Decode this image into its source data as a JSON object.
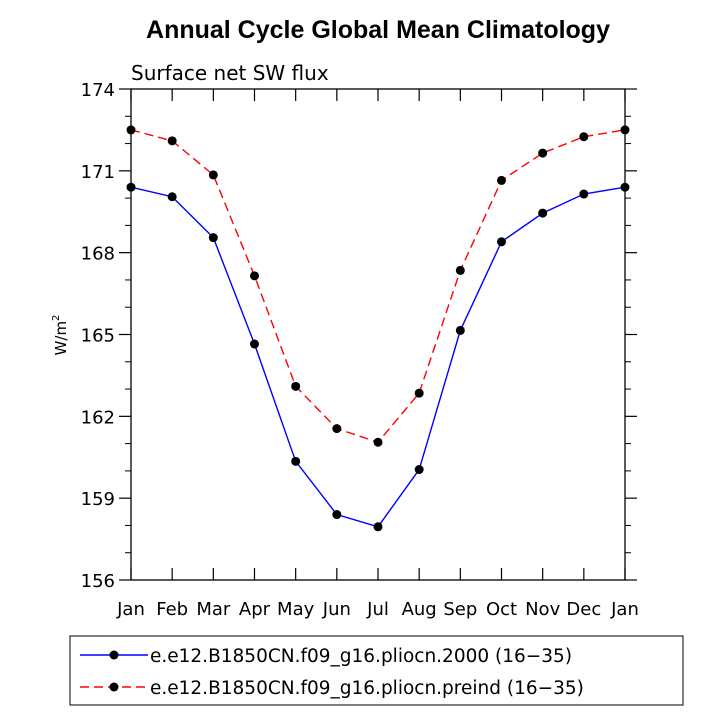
{
  "chart_data": {
    "type": "line",
    "title": "Annual Cycle Global Mean Climatology",
    "subtitle": "Surface net SW flux",
    "ylabel_base": "W/m",
    "ylabel_sup": "2",
    "ylim": [
      156,
      174
    ],
    "yticks": [
      "156",
      "159",
      "162",
      "165",
      "168",
      "171",
      "174"
    ],
    "categories": [
      "Jan",
      "Feb",
      "Mar",
      "Apr",
      "May",
      "Jun",
      "Jul",
      "Aug",
      "Sep",
      "Oct",
      "Nov",
      "Dec",
      "Jan"
    ],
    "series": [
      {
        "name": "e.e12.B1850CN.f09_g16.pliocn.2000 (16−35)",
        "color": "#0000ff",
        "dash": "solid",
        "values": [
          170.4,
          170.05,
          168.55,
          164.65,
          160.35,
          158.4,
          157.95,
          160.05,
          165.15,
          168.4,
          169.45,
          170.15,
          170.4
        ]
      },
      {
        "name": "e.e12.B1850CN.f09_g16.pliocn.preind (16−35)",
        "color": "#ff0000",
        "dash": "dashed",
        "values": [
          172.5,
          172.1,
          170.85,
          167.15,
          163.1,
          161.55,
          161.05,
          162.85,
          167.35,
          170.65,
          171.65,
          172.25,
          172.5
        ]
      }
    ],
    "grid": false,
    "legend_position": "bottom"
  }
}
